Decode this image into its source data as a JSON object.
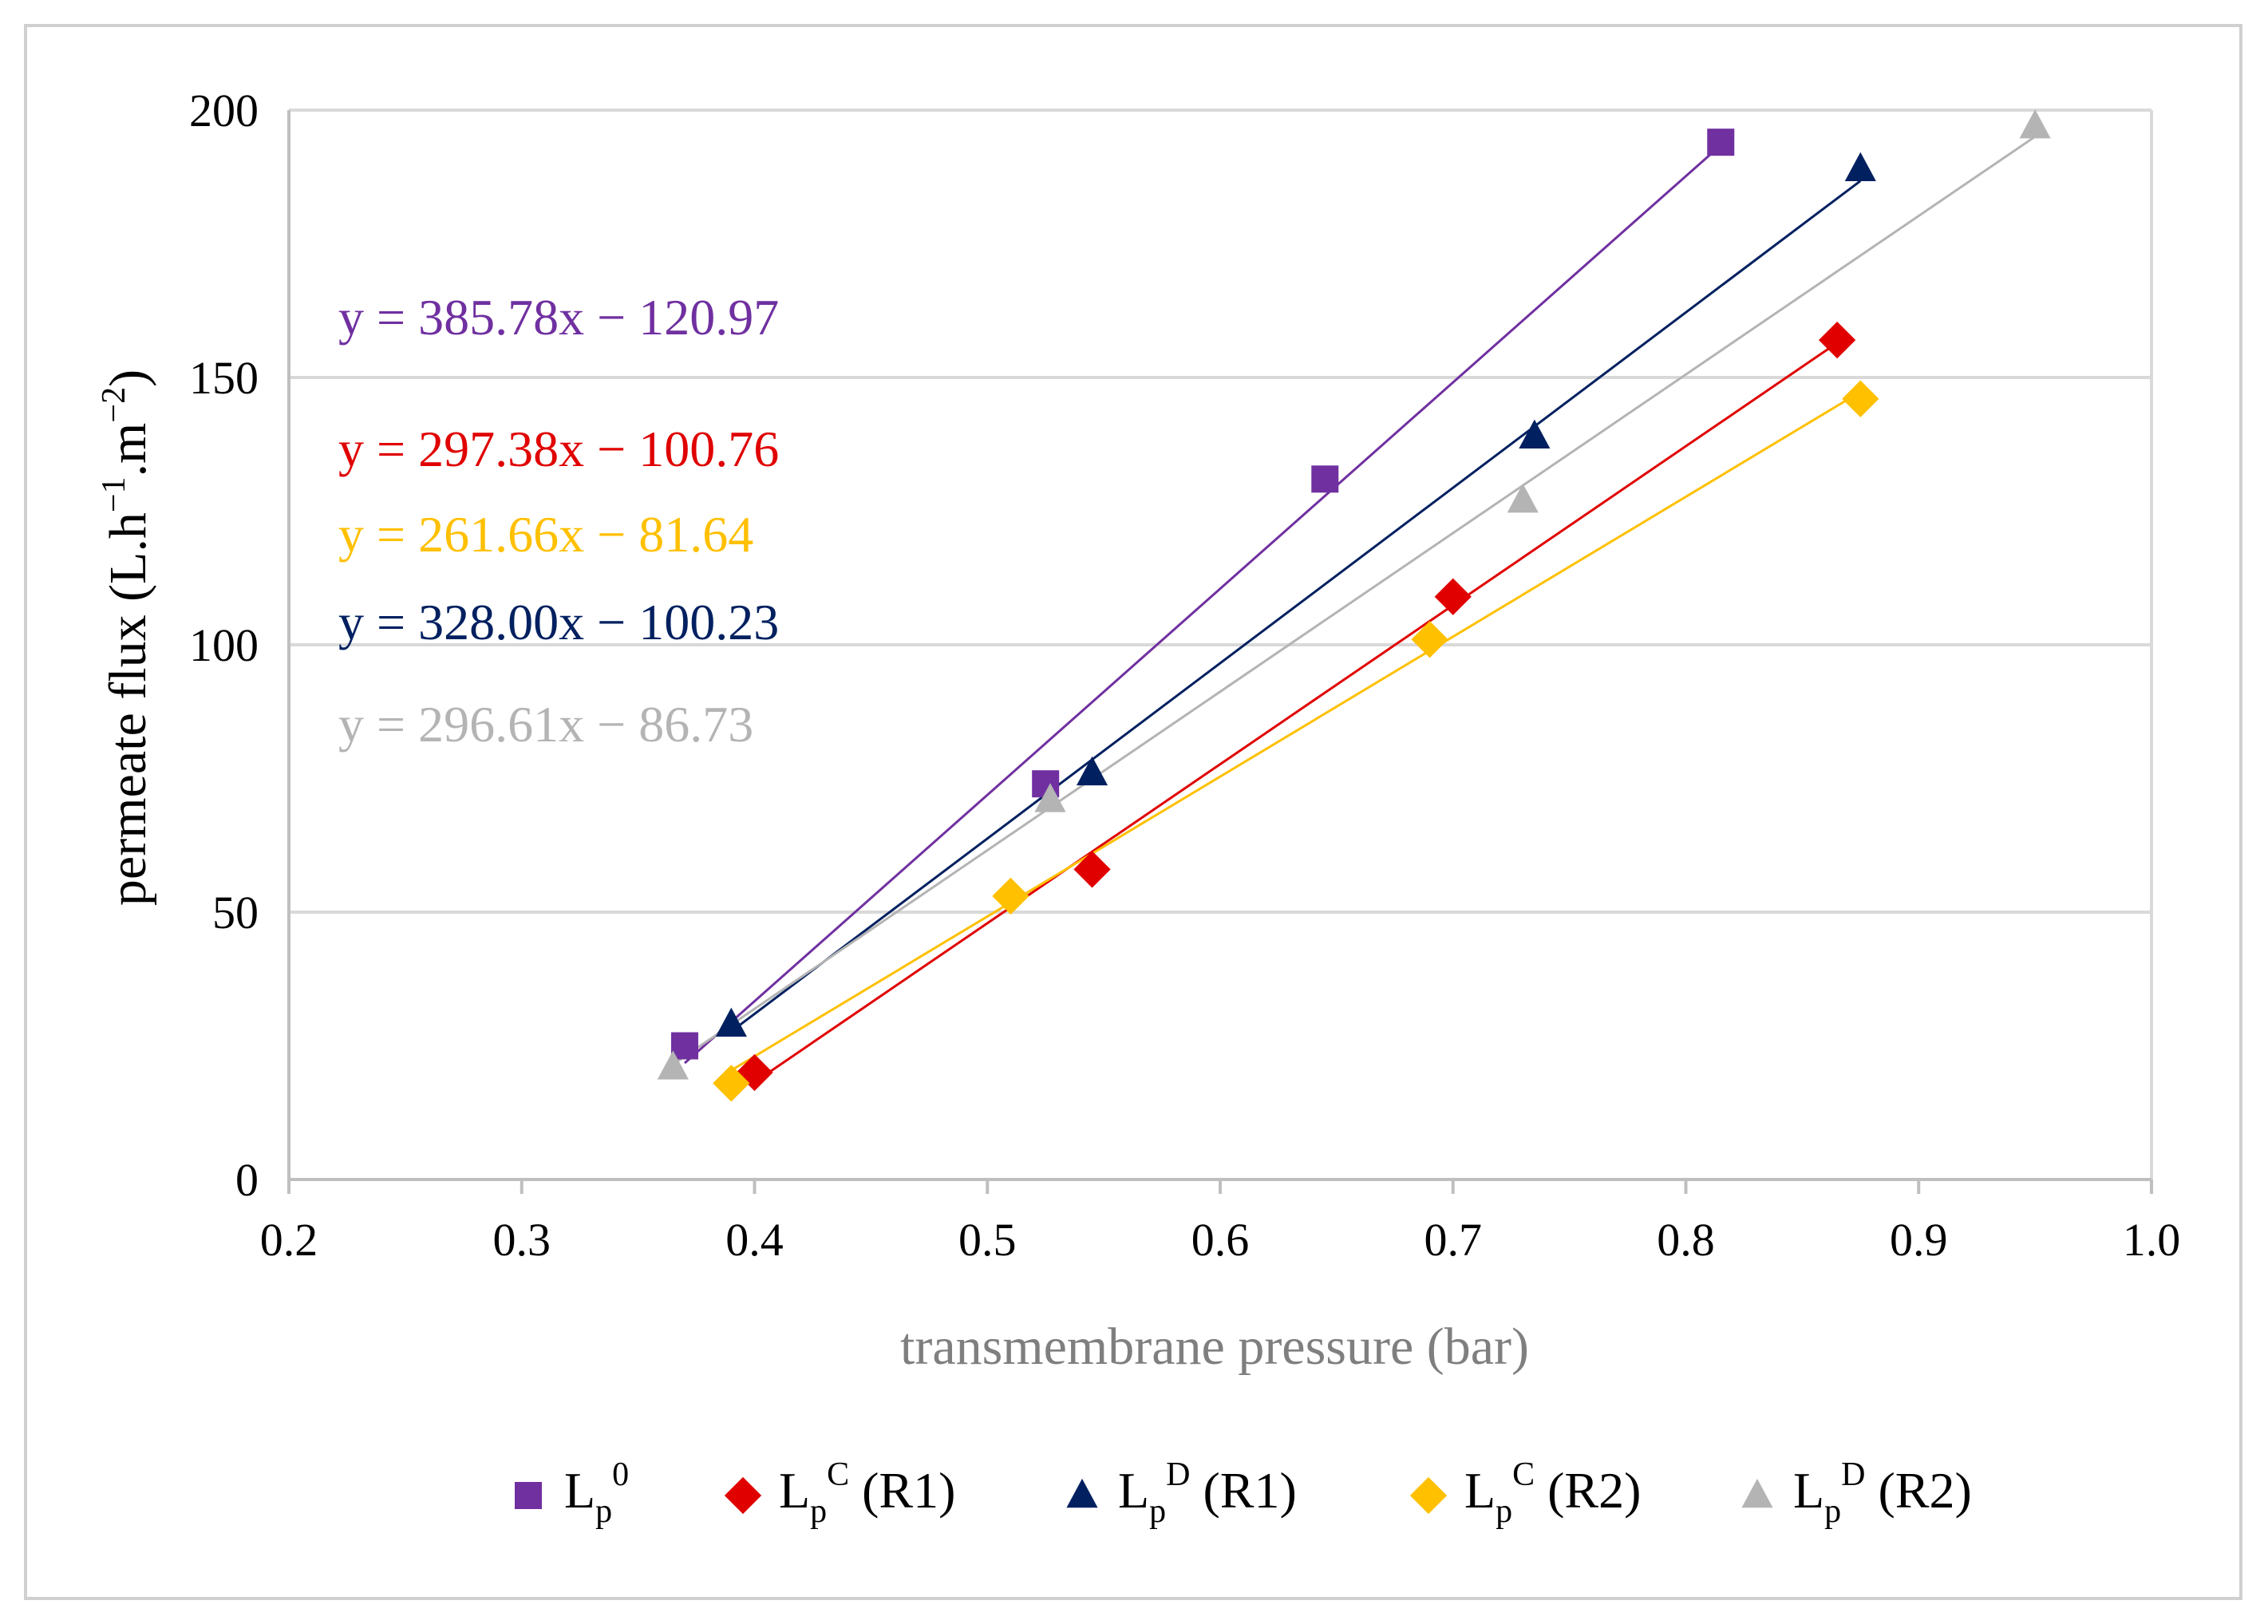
{
  "chart_data": {
    "type": "scatter",
    "title": "",
    "xlabel": "transmembrane pressure (bar)",
    "ylabel": "permeate flux (L.h",
    "ylabel_parts": {
      "a": "permeate flux (L.h",
      "b": "−1",
      "c": ".m",
      "d": "−2",
      "e": ")"
    },
    "xlim": [
      0.2,
      1.0
    ],
    "ylim": [
      0,
      200
    ],
    "xticks": [
      "0.2",
      "0.3",
      "0.4",
      "0.5",
      "0.6",
      "0.7",
      "0.8",
      "0.9",
      "1.0"
    ],
    "yticks": [
      "0",
      "50",
      "100",
      "150",
      "200"
    ],
    "grid": "horizontal",
    "legend_position": "bottom",
    "series": [
      {
        "name": "Lp0",
        "label_main": "L",
        "label_sub": "p",
        "label_sup": "0",
        "label_suffix": "",
        "marker": "square",
        "color": "#7030a0",
        "points": [
          [
            0.37,
            25
          ],
          [
            0.525,
            74
          ],
          [
            0.645,
            131
          ],
          [
            0.815,
            194
          ]
        ],
        "equation": "y = 385.78x − 120.97",
        "fit": {
          "slope": 385.78,
          "intercept": -120.97,
          "xmin": 0.37,
          "xmax": 0.815
        }
      },
      {
        "name": "LpC (R1)",
        "label_main": "L",
        "label_sub": "p",
        "label_sup": "C",
        "label_suffix": " (R1)",
        "marker": "diamond",
        "color": "#e00000",
        "points": [
          [
            0.4,
            20
          ],
          [
            0.545,
            58
          ],
          [
            0.7,
            109
          ],
          [
            0.865,
            157
          ]
        ],
        "equation": "y = 297.38x − 100.76",
        "fit": {
          "slope": 297.38,
          "intercept": -100.76,
          "xmin": 0.4,
          "xmax": 0.865
        }
      },
      {
        "name": "LpD (R1)",
        "label_main": "L",
        "label_sub": "p",
        "label_sup": "D",
        "label_suffix": " (R1)",
        "marker": "triangle",
        "color": "#002060",
        "points": [
          [
            0.39,
            29
          ],
          [
            0.545,
            76
          ],
          [
            0.735,
            139
          ],
          [
            0.875,
            189
          ]
        ],
        "equation": "y = 328.00x − 100.23",
        "fit": {
          "slope": 328.0,
          "intercept": -100.23,
          "xmin": 0.39,
          "xmax": 0.875
        }
      },
      {
        "name": "LpC (R2)",
        "label_main": "L",
        "label_sub": "p",
        "label_sup": "C",
        "label_suffix": " (R2)",
        "marker": "diamond",
        "color": "#ffc000",
        "points": [
          [
            0.39,
            18
          ],
          [
            0.51,
            53
          ],
          [
            0.69,
            101
          ],
          [
            0.875,
            146
          ]
        ],
        "equation": "y = 261.66x − 81.64",
        "fit": {
          "slope": 261.66,
          "intercept": -81.64,
          "xmin": 0.39,
          "xmax": 0.875
        }
      },
      {
        "name": "LpD (R2)",
        "label_main": "L",
        "label_sub": "p",
        "label_sup": "D",
        "label_suffix": " (R2)",
        "marker": "triangle",
        "color": "#b4b4b4",
        "points": [
          [
            0.365,
            21
          ],
          [
            0.527,
            71
          ],
          [
            0.73,
            127
          ],
          [
            0.95,
            197
          ]
        ],
        "equation": "y = 296.61x − 86.73",
        "fit": {
          "slope": 296.61,
          "intercept": -86.73,
          "xmin": 0.365,
          "xmax": 0.95
        }
      }
    ],
    "equation_order": [
      0,
      1,
      3,
      2,
      4
    ]
  }
}
